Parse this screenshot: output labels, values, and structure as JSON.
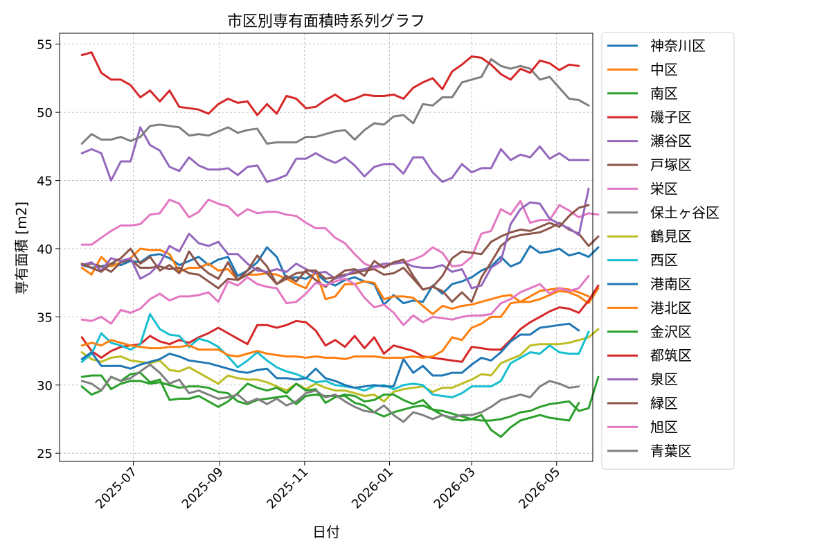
{
  "chart_data": {
    "type": "line",
    "title": "市区別専有面積時系列グラフ",
    "xlabel": "日付",
    "ylabel": "専有面積 [m2]",
    "x_start": "2025-05-25",
    "x_step_days": 7,
    "xlim": [
      "2025-05-09",
      "2026-05-27"
    ],
    "ylim": [
      24.4,
      55.8
    ],
    "x_ticks": [
      "2025-07",
      "2025-09",
      "2025-11",
      "2026-01",
      "2026-03",
      "2026-05"
    ],
    "y_ticks": [
      25,
      30,
      35,
      40,
      45,
      50,
      55
    ],
    "grid": true,
    "legend_position": "outside-right",
    "series": [
      {
        "name": "神奈川区",
        "color": "#1f77b4",
        "values": [
          38.8,
          38.6,
          38.7,
          38.9,
          38.8,
          39.1,
          39.0,
          39.5,
          39.6,
          39.3,
          38.8,
          39.1,
          39.4,
          38.8,
          39.2,
          39.4,
          38.0,
          38.4,
          39.0,
          40.1,
          39.4,
          37.8,
          37.9,
          37.8,
          38.2,
          37.6,
          37.3,
          37.7,
          37.9,
          37.6,
          37.4,
          35.9,
          36.6,
          36.0,
          36.2,
          36.1,
          37.3,
          36.7,
          37.4,
          37.6,
          37.9,
          38.4,
          38.7,
          39.4,
          38.7,
          39.0,
          40.2,
          39.7,
          39.8,
          40.0,
          39.5,
          39.7,
          39.4,
          40.1
        ]
      },
      {
        "name": "中区",
        "color": "#ff7f0e",
        "values": [
          38.6,
          38.1,
          39.4,
          38.7,
          39.0,
          39.3,
          40.0,
          39.9,
          39.9,
          39.6,
          38.3,
          38.6,
          38.6,
          38.9,
          38.4,
          38.5,
          37.7,
          38.1,
          38.1,
          38.2,
          38.1,
          37.8,
          37.4,
          37.1,
          38.4,
          36.3,
          36.5,
          37.4,
          37.4,
          37.6,
          37.5,
          36.3,
          36.5,
          36.5,
          36.4,
          35.8,
          35.2,
          35.8,
          35.6,
          35.8,
          35.9,
          36.1,
          36.3,
          36.5,
          36.6,
          36.1,
          36.1,
          36.3,
          36.6,
          36.9,
          36.8,
          36.5,
          36.0,
          37.1
        ]
      },
      {
        "name": "南区",
        "color": "#2ca02c",
        "values": [
          30.6,
          30.7,
          30.7,
          29.7,
          30.1,
          30.3,
          30.3,
          30.1,
          30.2,
          30.0,
          29.8,
          29.9,
          29.9,
          29.8,
          29.5,
          29.4,
          28.8,
          28.6,
          28.9,
          29.0,
          29.1,
          29.2,
          28.6,
          29.2,
          29.3,
          29.2,
          29.2,
          29.2,
          28.7,
          28.5,
          28.0,
          27.7,
          28.0,
          28.2,
          28.4,
          28.5,
          28.2,
          28.1,
          27.9,
          27.7,
          27.5,
          27.4,
          27.4,
          27.5,
          27.7,
          28.0,
          28.1,
          28.4,
          28.6,
          28.7,
          28.8,
          28.1,
          28.3,
          30.6
        ]
      },
      {
        "name": "磯子区",
        "color": "#d62728",
        "values": [
          33.5,
          32.5,
          32.0,
          32.5,
          32.8,
          32.9,
          33.0,
          33.6,
          33.2,
          33.0,
          33.3,
          33.1,
          33.5,
          33.8,
          34.2,
          33.8,
          33.4,
          33.0,
          34.4,
          34.4,
          34.2,
          34.4,
          34.7,
          34.6,
          34.0,
          32.9,
          33.3,
          32.8,
          33.6,
          32.7,
          33.5,
          32.3,
          32.9,
          32.7,
          32.5,
          32.1,
          32.0,
          31.9,
          31.8,
          31.7,
          32.8,
          32.7,
          32.6,
          32.6,
          33.3,
          34.1,
          34.6,
          35.0,
          35.4,
          35.7,
          35.6,
          35.3,
          36.2,
          37.3
        ]
      },
      {
        "name": "瀬谷区",
        "color": "#9467bd",
        "values": [
          47.0,
          47.3,
          47.0,
          45.0,
          46.4,
          46.4,
          48.9,
          47.6,
          47.2,
          46.0,
          45.7,
          46.7,
          46.1,
          45.8,
          45.8,
          45.9,
          45.4,
          46.0,
          46.1,
          44.9,
          45.1,
          45.4,
          46.6,
          46.6,
          47.0,
          46.6,
          46.3,
          46.7,
          46.1,
          45.3,
          46.0,
          46.2,
          46.2,
          45.5,
          46.7,
          46.7,
          45.6,
          44.9,
          45.2,
          46.2,
          45.6,
          45.9,
          45.9,
          47.3,
          46.5,
          46.9,
          46.7,
          47.5,
          46.6,
          47.0,
          46.5,
          46.5,
          46.5
        ]
      },
      {
        "name": "戸塚区",
        "color": "#8c564b",
        "values": [
          38.8,
          38.9,
          38.7,
          38.3,
          39.0,
          39.2,
          38.6,
          38.6,
          38.7,
          38.5,
          38.6,
          38.2,
          38.1,
          37.6,
          37.1,
          37.8,
          37.7,
          38.1,
          38.6,
          38.2,
          37.4,
          37.8,
          38.2,
          38.3,
          37.7,
          37.2,
          37.9,
          38.1,
          38.2,
          38.4,
          38.5,
          38.1,
          38.2,
          38.6,
          37.8,
          37.0,
          37.2,
          36.9,
          36.1,
          36.8,
          36.1,
          37.9,
          39.0,
          40.2,
          40.8,
          41.0,
          41.1,
          41.2,
          41.5,
          41.9,
          41.4,
          41.1,
          40.2,
          40.9
        ]
      },
      {
        "name": "栄区",
        "color": "#e377c2",
        "values": [
          40.3,
          40.3,
          40.8,
          41.3,
          41.7,
          41.7,
          41.8,
          42.5,
          42.6,
          43.6,
          43.3,
          42.3,
          42.7,
          43.6,
          43.3,
          43.1,
          42.4,
          42.9,
          42.6,
          42.7,
          42.7,
          42.5,
          42.4,
          41.9,
          41.5,
          41.5,
          40.8,
          40.4,
          39.6,
          38.9,
          38.6,
          38.7,
          38.9,
          39.0,
          39.2,
          39.5,
          40.1,
          39.7,
          38.7,
          38.8,
          39.4,
          41.1,
          41.3,
          42.9,
          42.5,
          43.5,
          41.9,
          42.1,
          42.1,
          43.2,
          42.8,
          42.3,
          42.6,
          42.5
        ]
      },
      {
        "name": "保土ヶ谷区",
        "color": "#7f7f7f",
        "values": [
          47.7,
          48.4,
          48.0,
          48.0,
          48.2,
          47.9,
          48.2,
          49.0,
          49.1,
          49.0,
          48.9,
          48.3,
          48.4,
          48.3,
          48.6,
          48.9,
          48.5,
          48.7,
          48.8,
          47.7,
          47.8,
          47.8,
          47.8,
          48.2,
          48.2,
          48.4,
          48.6,
          48.7,
          48.0,
          48.7,
          49.2,
          49.1,
          49.7,
          49.8,
          49.2,
          50.6,
          50.5,
          51.1,
          51.1,
          52.2,
          52.4,
          52.6,
          53.9,
          53.4,
          53.2,
          53.4,
          53.2,
          52.4,
          52.6,
          51.8,
          51.0,
          50.9,
          50.5
        ]
      },
      {
        "name": "鶴見区",
        "color": "#bcbd22",
        "values": [
          32.4,
          31.9,
          31.7,
          32.0,
          32.1,
          31.8,
          31.7,
          31.6,
          31.8,
          31.1,
          31.0,
          31.3,
          30.9,
          30.5,
          30.1,
          30.7,
          30.5,
          30.4,
          30.4,
          30.2,
          29.9,
          29.6,
          30.1,
          29.7,
          30.1,
          29.8,
          29.6,
          29.6,
          29.4,
          29.2,
          29.3,
          28.8,
          29.5,
          29.7,
          29.8,
          29.9,
          29.5,
          29.8,
          29.8,
          30.1,
          30.4,
          30.8,
          30.7,
          31.6,
          31.9,
          32.2,
          32.9,
          33.0,
          33.0,
          33.0,
          33.1,
          33.3,
          33.5,
          34.1
        ]
      },
      {
        "name": "西区",
        "color": "#17becf",
        "values": [
          31.7,
          32.3,
          33.8,
          33.1,
          32.9,
          32.6,
          33.0,
          35.2,
          34.1,
          33.7,
          33.6,
          32.8,
          33.4,
          33.2,
          32.8,
          32.1,
          31.3,
          31.8,
          32.4,
          31.8,
          31.3,
          31.0,
          30.8,
          30.5,
          30.2,
          30.3,
          30.0,
          29.9,
          29.8,
          29.6,
          29.9,
          30.0,
          29.7,
          30.0,
          30.1,
          30.0,
          29.3,
          29.2,
          29.1,
          29.4,
          29.9,
          29.9,
          29.9,
          30.3,
          31.6,
          32.0,
          32.4,
          32.3,
          32.9,
          32.4,
          32.3,
          32.3,
          33.9
        ]
      },
      {
        "name": "港南区",
        "color": "#1f77b4",
        "values": [
          31.9,
          32.4,
          31.4,
          31.4,
          31.4,
          31.2,
          31.5,
          31.7,
          31.9,
          32.3,
          32.1,
          31.8,
          31.7,
          31.6,
          31.4,
          31.2,
          31.0,
          30.9,
          31.1,
          31.2,
          30.5,
          30.5,
          30.4,
          30.5,
          31.2,
          30.5,
          30.3,
          30.0,
          29.8,
          29.9,
          30.0,
          29.9,
          29.9,
          31.9,
          30.9,
          31.4,
          30.7,
          30.7,
          30.9,
          30.9,
          31.5,
          32.0,
          31.8,
          32.4,
          33.2,
          33.7,
          33.7,
          34.2,
          34.3,
          34.4,
          34.5,
          34.0
        ]
      },
      {
        "name": "港北区",
        "color": "#ff7f0e",
        "values": [
          32.9,
          33.1,
          32.9,
          33.3,
          33.1,
          32.9,
          32.8,
          32.7,
          32.7,
          32.8,
          32.8,
          32.9,
          32.6,
          32.6,
          32.6,
          32.2,
          32.1,
          32.3,
          32.5,
          32.3,
          32.2,
          32.1,
          32.1,
          32.0,
          32.1,
          32.0,
          32.0,
          31.9,
          32.1,
          32.1,
          32.1,
          32.0,
          32.0,
          32.0,
          32.1,
          32.0,
          32.1,
          32.5,
          33.5,
          33.3,
          34.2,
          34.5,
          35.0,
          35.0,
          36.0,
          36.1,
          36.5,
          36.9,
          37.0,
          37.1,
          37.0,
          36.8,
          36.5
        ]
      },
      {
        "name": "金沢区",
        "color": "#2ca02c",
        "values": [
          29.9,
          29.3,
          29.6,
          30.6,
          30.3,
          30.8,
          30.9,
          30.2,
          30.4,
          28.9,
          29.0,
          29.0,
          29.2,
          28.8,
          28.4,
          28.8,
          29.4,
          30.1,
          29.8,
          29.6,
          29.8,
          29.4,
          30.1,
          29.6,
          29.7,
          28.7,
          29.1,
          29.3,
          29.2,
          28.8,
          28.9,
          29.3,
          29.3,
          28.9,
          28.6,
          28.9,
          28.2,
          27.8,
          27.5,
          27.4,
          27.5,
          27.8,
          26.7,
          26.2,
          26.9,
          27.4,
          27.6,
          27.8,
          27.6,
          27.5,
          27.4,
          28.7
        ]
      },
      {
        "name": "都筑区",
        "color": "#d62728",
        "values": [
          54.2,
          54.4,
          52.9,
          52.4,
          52.4,
          52.0,
          51.1,
          51.6,
          50.8,
          51.6,
          50.4,
          50.3,
          50.2,
          49.9,
          50.6,
          51.0,
          50.7,
          50.8,
          49.8,
          50.6,
          49.9,
          51.2,
          51.0,
          50.3,
          50.4,
          50.9,
          51.3,
          50.8,
          51.0,
          51.3,
          51.2,
          51.2,
          51.3,
          51.0,
          51.8,
          52.2,
          52.5,
          51.7,
          53.0,
          53.5,
          54.1,
          54.0,
          53.5,
          52.8,
          52.4,
          53.2,
          52.9,
          53.8,
          53.6,
          53.1,
          53.5,
          53.4
        ]
      },
      {
        "name": "泉区",
        "color": "#9467bd",
        "values": [
          38.8,
          39.0,
          38.4,
          39.3,
          39.1,
          39.3,
          37.8,
          38.2,
          38.9,
          40.2,
          39.8,
          41.1,
          40.4,
          40.2,
          40.5,
          39.6,
          39.6,
          38.9,
          38.4,
          38.3,
          38.5,
          38.3,
          38.9,
          38.5,
          38.2,
          38.3,
          37.8,
          38.0,
          38.4,
          38.5,
          38.7,
          38.9,
          38.9,
          39.0,
          38.7,
          38.6,
          38.6,
          38.8,
          38.3,
          38.5,
          37.1,
          37.3,
          38.6,
          39.1,
          41.8,
          42.9,
          43.4,
          43.3,
          42.2,
          41.8,
          41.5,
          41.0,
          44.4
        ]
      },
      {
        "name": "緑区",
        "color": "#8c564b",
        "values": [
          38.9,
          38.6,
          38.3,
          38.9,
          39.3,
          40.0,
          38.9,
          39.4,
          38.4,
          38.8,
          38.2,
          39.8,
          38.8,
          38.2,
          37.8,
          39.0,
          37.7,
          38.4,
          39.5,
          38.7,
          37.4,
          38.0,
          37.6,
          38.4,
          38.4,
          37.8,
          37.9,
          38.4,
          38.5,
          38.0,
          39.1,
          38.6,
          39.0,
          39.2,
          38.0,
          37.0,
          37.2,
          38.0,
          39.3,
          39.8,
          39.7,
          39.6,
          40.5,
          40.9,
          41.2,
          41.4,
          41.3,
          41.6,
          41.9,
          41.6,
          42.4,
          43.0,
          43.2
        ]
      },
      {
        "name": "旭区",
        "color": "#e377c2",
        "values": [
          34.8,
          34.7,
          35.0,
          34.5,
          35.5,
          35.3,
          35.6,
          36.3,
          36.7,
          36.2,
          36.5,
          36.5,
          36.6,
          36.8,
          36.1,
          37.6,
          37.3,
          37.9,
          37.4,
          37.2,
          37.1,
          36.0,
          36.1,
          36.7,
          37.5,
          37.3,
          37.6,
          37.8,
          37.4,
          36.4,
          35.7,
          35.9,
          35.3,
          34.4,
          35.1,
          34.6,
          35.0,
          34.9,
          34.8,
          35.0,
          35.1,
          35.1,
          35.2,
          36.0,
          36.3,
          36.8,
          37.1,
          37.4,
          36.7,
          37.1,
          36.9,
          37.1,
          38.0
        ]
      },
      {
        "name": "青葉区",
        "color": "#7f7f7f",
        "values": [
          30.3,
          30.1,
          29.6,
          30.6,
          30.3,
          30.5,
          31.0,
          31.5,
          30.9,
          30.1,
          30.4,
          29.4,
          29.6,
          29.3,
          29.0,
          29.1,
          29.3,
          28.7,
          29.0,
          28.6,
          29.0,
          28.5,
          28.8,
          29.4,
          29.6,
          29.1,
          29.3,
          28.8,
          28.4,
          28.1,
          28.0,
          28.5,
          27.8,
          27.3,
          28.0,
          27.8,
          27.5,
          27.8,
          27.6,
          27.8,
          27.8,
          28.0,
          28.4,
          28.9,
          29.1,
          29.3,
          29.1,
          29.9,
          30.3,
          30.1,
          29.8,
          29.9
        ]
      }
    ]
  }
}
